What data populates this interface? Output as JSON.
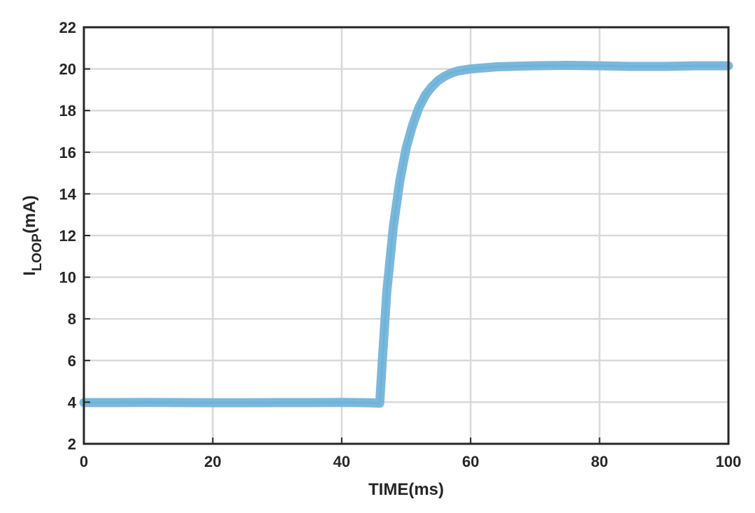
{
  "chart_data": {
    "type": "line",
    "xlabel": "TIME(ms)",
    "ylabel": {
      "main": "I",
      "subscript": "LOOP",
      "suffix": "(mA)"
    },
    "xlim": [
      0,
      100
    ],
    "ylim": [
      2,
      22
    ],
    "xticks": [
      "0",
      "20",
      "40",
      "60",
      "80",
      "100"
    ],
    "yticks": [
      "2",
      "4",
      "6",
      "8",
      "10",
      "12",
      "14",
      "16",
      "18",
      "20",
      "22"
    ],
    "grid": true,
    "series": [
      {
        "color": "#7ab8dc",
        "x": [
          0,
          5,
          10,
          15,
          20,
          25,
          30,
          35,
          40,
          44,
          45.9,
          46.3,
          47,
          48,
          49,
          50,
          51,
          52,
          53,
          54,
          55,
          56,
          57,
          58,
          60,
          62,
          64,
          66,
          70,
          75,
          80,
          85,
          90,
          95,
          100
        ],
        "y": [
          3.98,
          3.98,
          3.99,
          3.98,
          3.97,
          3.97,
          3.98,
          3.98,
          3.99,
          3.97,
          3.95,
          6.0,
          9.3,
          12.4,
          14.6,
          16.2,
          17.3,
          18.15,
          18.75,
          19.15,
          19.45,
          19.65,
          19.8,
          19.9,
          20.0,
          20.05,
          20.1,
          20.12,
          20.15,
          20.17,
          20.15,
          20.12,
          20.12,
          20.15,
          20.15
        ]
      }
    ]
  }
}
